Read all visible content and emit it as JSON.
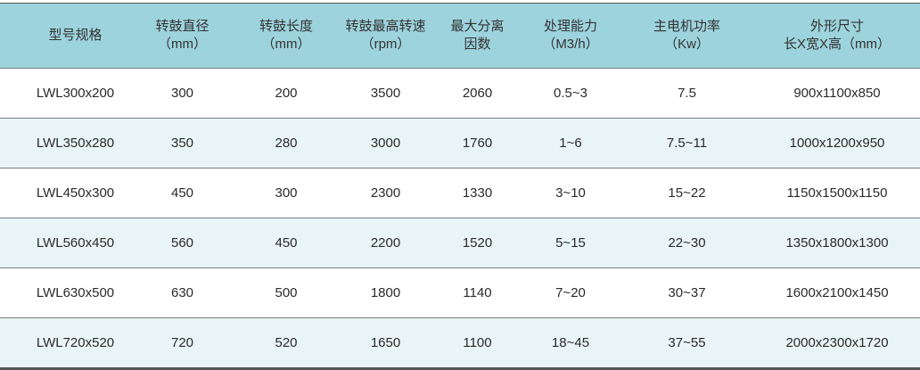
{
  "headers": [
    {
      "line1": "型号规格",
      "line2": ""
    },
    {
      "line1": "转鼓直径",
      "line2": "（mm）"
    },
    {
      "line1": "转鼓长度",
      "line2": "（mm）"
    },
    {
      "line1": "转鼓最高转速",
      "line2": "（rpm）"
    },
    {
      "line1": "最大分离",
      "line2": "因数"
    },
    {
      "line1": "处理能力",
      "line2": "（M3/h）"
    },
    {
      "line1": "主电机功率",
      "line2": "（Kw）"
    },
    {
      "line1": "外形尺寸",
      "line2": "长X宽X高（mm）"
    }
  ],
  "rows": [
    [
      "LWL300x200",
      "300",
      "200",
      "3500",
      "2060",
      "0.5~3",
      "7.5",
      "900x1100x850"
    ],
    [
      "LWL350x280",
      "350",
      "280",
      "3000",
      "1760",
      "1~6",
      "7.5~11",
      "1000x1200x950"
    ],
    [
      "LWL450x300",
      "450",
      "300",
      "2300",
      "1330",
      "3~10",
      "15~22",
      "1150x1500x1150"
    ],
    [
      "LWL560x450",
      "560",
      "450",
      "2200",
      "1520",
      "5~15",
      "22~30",
      "1350x1800x1300"
    ],
    [
      "LWL630x500",
      "630",
      "500",
      "1800",
      "1140",
      "7~20",
      "30~37",
      "1600x2100x1450"
    ],
    [
      "LWL720x520",
      "720",
      "520",
      "1650",
      "1100",
      "18~45",
      "37~55",
      "2000x2300x1720"
    ]
  ],
  "colors": {
    "header_bg": "#9dd3dc",
    "alt_row_bg": "#e8f4f5",
    "border": "#555555"
  }
}
